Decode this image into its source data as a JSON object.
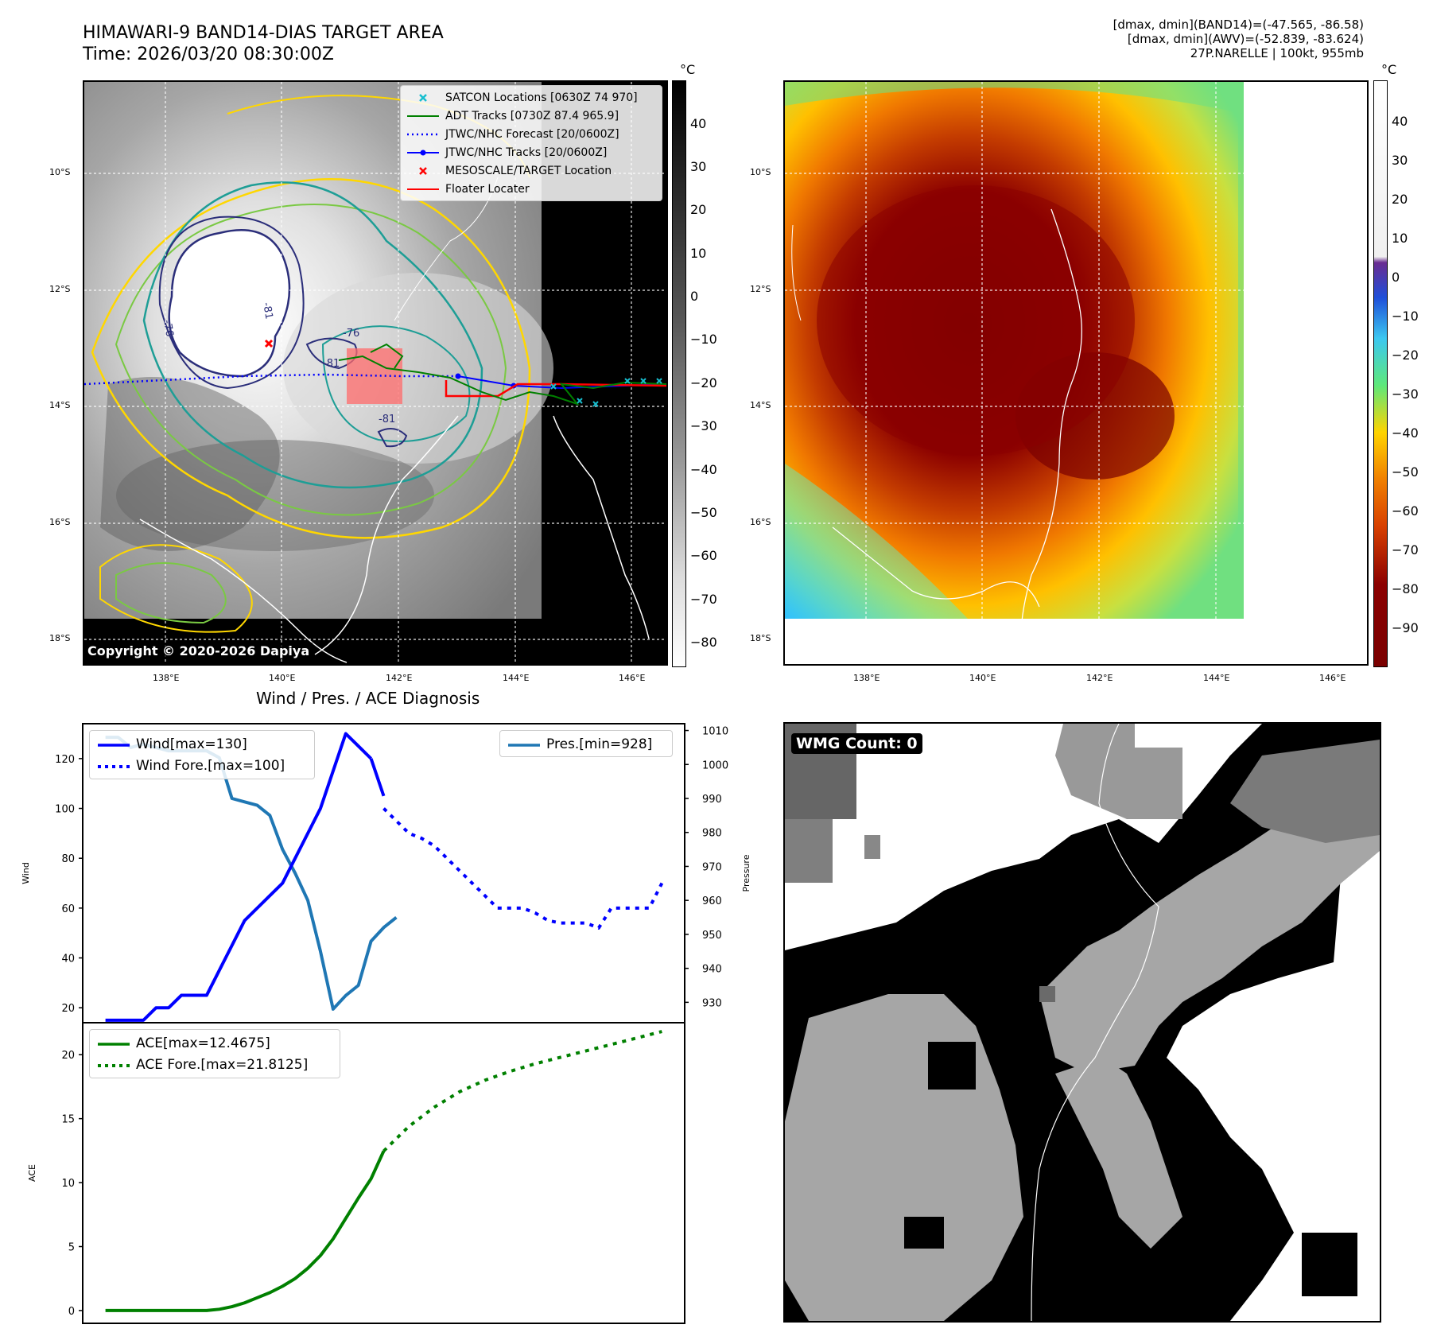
{
  "header": {
    "title": "HIMAWARI-9 BAND14-DIAS TARGET AREA",
    "time": "Time: 2026/03/20 08:30:00Z",
    "info_line1": "[dmax, dmin](BAND14)=(-47.565, -86.58)",
    "info_line2": "[dmax, dmin](AWV)=(-52.839, -83.624)",
    "info_line3": "27P.NARELLE | 100kt, 955mb"
  },
  "map": {
    "lat_ticks": [
      "10°S",
      "12°S",
      "14°S",
      "16°S",
      "18°S"
    ],
    "lon_ticks": [
      "138°E",
      "140°E",
      "142°E",
      "144°E",
      "146°E"
    ],
    "copyright": "Copyright © 2020-2026 Dapiya",
    "contour_labels": [
      "-76",
      "-81",
      "-76",
      "-81",
      "-81"
    ],
    "legend": [
      {
        "label": "SATCON Locations [0630Z 74 970]",
        "color": "#17becf",
        "style": "x-marker"
      },
      {
        "label": "ADT Tracks [0730Z 87.4 965.9]",
        "color": "#008000",
        "style": "line"
      },
      {
        "label": "JTWC/NHC Forecast [20/0600Z]",
        "color": "#0000ff",
        "style": "dotted"
      },
      {
        "label": "JTWC/NHC Tracks [20/0600Z]",
        "color": "#0000ff",
        "style": "line-dot"
      },
      {
        "label": "MESOSCALE/TARGET Location",
        "color": "#ff0000",
        "style": "x-marker"
      },
      {
        "label": "Floater Locater",
        "color": "#ff0000",
        "style": "line"
      }
    ]
  },
  "colorbar_gray": {
    "unit": "°C",
    "ticks": [
      "40",
      "30",
      "20",
      "10",
      "0",
      "−10",
      "−20",
      "−30",
      "−40",
      "−50",
      "−60",
      "−70",
      "−80"
    ]
  },
  "colorbar_color": {
    "unit": "°C",
    "ticks": [
      "40",
      "30",
      "20",
      "10",
      "0",
      "−10",
      "−20",
      "−30",
      "−40",
      "−50",
      "−60",
      "−70",
      "−80",
      "−90"
    ]
  },
  "diagnosis": {
    "title": "Wind / Pres. / ACE Diagnosis",
    "wind_ylabel": "Wind",
    "pres_ylabel": "Pressure",
    "ace_ylabel": "ACE",
    "legend_wind": "Wind[max=130]",
    "legend_wind_fore": "Wind Fore.[max=100]",
    "legend_pres": "Pres.[min=928]",
    "legend_ace": "ACE[max=12.4675]",
    "legend_ace_fore": "ACE Fore.[max=21.8125]"
  },
  "wmg": {
    "label": "WMG Count: 0"
  },
  "chart_data": [
    {
      "type": "line",
      "title": "Wind / Pres. / ACE Diagnosis",
      "ylabel": "Wind",
      "ylim": [
        14,
        134
      ],
      "yticks": [
        20,
        40,
        60,
        80,
        100,
        120
      ],
      "series": [
        {
          "name": "Wind[max=130]",
          "color": "#0000ff",
          "style": "solid",
          "x": [
            0,
            1,
            2,
            3,
            4,
            5,
            6,
            7,
            8,
            9,
            10,
            11,
            12,
            13,
            14,
            15,
            16,
            17,
            18,
            19,
            20,
            21
          ],
          "values": [
            15,
            15,
            15,
            15,
            20,
            20,
            25,
            25,
            25,
            35,
            45,
            55,
            60,
            65,
            70,
            80,
            90,
            100,
            115,
            130,
            125,
            120
          ]
        },
        {
          "name": "Wind[max=130]",
          "color": "#0000ff",
          "style": "solid",
          "x": [
            21,
            22
          ],
          "values": [
            120,
            105
          ]
        },
        {
          "name": "Wind Fore.[max=100]",
          "color": "#0000ff",
          "style": "dotted",
          "x": [
            22,
            23,
            24,
            25,
            26,
            27,
            28,
            29,
            30,
            31,
            32,
            33,
            34,
            35,
            36,
            37,
            38,
            39,
            40,
            41,
            42,
            43,
            44
          ],
          "values": [
            100,
            95,
            90,
            88,
            85,
            80,
            75,
            70,
            65,
            60,
            60,
            60,
            58,
            55,
            54,
            54,
            54,
            52,
            60,
            60,
            60,
            60,
            70
          ]
        }
      ]
    },
    {
      "type": "line",
      "ylabel": "Pressure",
      "ylim": [
        924,
        1012
      ],
      "yticks": [
        930,
        940,
        950,
        960,
        970,
        980,
        990,
        1000,
        1010
      ],
      "series": [
        {
          "name": "Pres.[min=928]",
          "color": "#1f77b4",
          "x": [
            0,
            1,
            2,
            3,
            4,
            5,
            6,
            7,
            8,
            9,
            10,
            11,
            12,
            13,
            14,
            15,
            16,
            17,
            18,
            19,
            20,
            21,
            22,
            23
          ],
          "values": [
            1008,
            1008,
            1005,
            1006,
            1005,
            1004,
            1004,
            1004,
            1004,
            1002,
            990,
            989,
            988,
            985,
            975,
            968,
            960,
            945,
            928,
            932,
            935,
            948,
            952,
            955
          ]
        }
      ]
    },
    {
      "type": "line",
      "ylabel": "ACE",
      "ylim": [
        -1,
        22.5
      ],
      "yticks": [
        0,
        5,
        10,
        15,
        20
      ],
      "series": [
        {
          "name": "ACE[max=12.4675]",
          "color": "#008000",
          "style": "solid",
          "x": [
            0,
            2,
            4,
            6,
            8,
            9,
            10,
            11,
            12,
            13,
            14,
            15,
            16,
            17,
            18,
            19,
            20,
            21,
            22
          ],
          "values": [
            0,
            0,
            0,
            0,
            0,
            0.1,
            0.3,
            0.6,
            1.0,
            1.4,
            1.9,
            2.5,
            3.3,
            4.3,
            5.6,
            7.2,
            8.8,
            10.3,
            12.4675
          ]
        },
        {
          "name": "ACE Fore.[max=21.8125]",
          "color": "#008000",
          "style": "dotted",
          "x": [
            22,
            24,
            26,
            28,
            30,
            32,
            34,
            36,
            38,
            40,
            42,
            44
          ],
          "values": [
            12.4675,
            14.4,
            15.9,
            17.1,
            18.0,
            18.7,
            19.3,
            19.8,
            20.3,
            20.8,
            21.3,
            21.8125
          ]
        }
      ]
    }
  ]
}
